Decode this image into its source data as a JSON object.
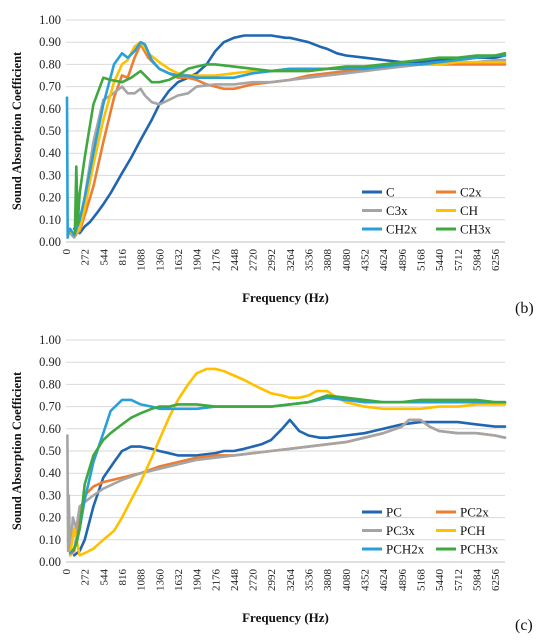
{
  "chart_data": [
    {
      "type": "line",
      "panel_label": "(b)",
      "xlabel": "Frequency (Hz)",
      "ylabel": "Sound Absorption Coefficient",
      "xlim": [
        0,
        6400
      ],
      "ylim": [
        0,
        1.0
      ],
      "x_ticks": [
        "0",
        "272",
        "544",
        "816",
        "1088",
        "1360",
        "1632",
        "1904",
        "2176",
        "2448",
        "2720",
        "2992",
        "3264",
        "3536",
        "3808",
        "4080",
        "4352",
        "4624",
        "4896",
        "5168",
        "5440",
        "5712",
        "5984",
        "6256"
      ],
      "y_ticks": [
        "0.00",
        "0.10",
        "0.20",
        "0.30",
        "0.40",
        "0.50",
        "0.60",
        "0.70",
        "0.80",
        "0.90",
        "1.00"
      ],
      "grid": "horizontal",
      "legend_position": "bottom-right",
      "series": [
        {
          "name": "C",
          "color": "#2166b0",
          "x": [
            120,
            200,
            272,
            350,
            450,
            544,
            650,
            816,
            950,
            1088,
            1250,
            1360,
            1500,
            1632,
            1780,
            1904,
            2050,
            2176,
            2300,
            2448,
            2600,
            2720,
            2850,
            2992,
            3200,
            3264,
            3400,
            3536,
            3700,
            3808,
            3950,
            4080,
            4352,
            4624,
            4896,
            5168,
            5440,
            5712,
            5984,
            6256,
            6400
          ],
          "y": [
            0.06,
            0.04,
            0.07,
            0.09,
            0.13,
            0.17,
            0.22,
            0.31,
            0.38,
            0.46,
            0.55,
            0.62,
            0.68,
            0.72,
            0.74,
            0.76,
            0.8,
            0.86,
            0.9,
            0.92,
            0.93,
            0.93,
            0.93,
            0.93,
            0.92,
            0.92,
            0.91,
            0.9,
            0.88,
            0.87,
            0.85,
            0.84,
            0.83,
            0.82,
            0.81,
            0.81,
            0.82,
            0.82,
            0.83,
            0.83,
            0.84
          ]
        },
        {
          "name": "C2x",
          "color": "#ed7d31",
          "x": [
            60,
            120,
            200,
            272,
            400,
            544,
            700,
            816,
            900,
            1000,
            1088,
            1200,
            1360,
            1500,
            1632,
            1780,
            1904,
            2050,
            2176,
            2300,
            2448,
            2720,
            2992,
            3264,
            3536,
            3808,
            4080,
            4352,
            4624,
            4896,
            5168,
            5440,
            5712,
            5984,
            6256,
            6400
          ],
          "y": [
            0.05,
            0.03,
            0.05,
            0.12,
            0.25,
            0.45,
            0.65,
            0.75,
            0.74,
            0.83,
            0.89,
            0.83,
            0.78,
            0.76,
            0.74,
            0.74,
            0.73,
            0.71,
            0.7,
            0.69,
            0.69,
            0.71,
            0.72,
            0.73,
            0.75,
            0.76,
            0.77,
            0.78,
            0.79,
            0.79,
            0.8,
            0.8,
            0.8,
            0.8,
            0.8,
            0.8
          ]
        },
        {
          "name": "C3x",
          "color": "#a5a5a5",
          "x": [
            60,
            120,
            200,
            272,
            400,
            544,
            650,
            816,
            900,
            1000,
            1088,
            1150,
            1250,
            1360,
            1500,
            1632,
            1780,
            1904,
            2176,
            2448,
            2720,
            2992,
            3264,
            3536,
            3808,
            4080,
            4352,
            4624,
            4896,
            5168,
            5440,
            5712,
            5984,
            6256,
            6400
          ],
          "y": [
            0.04,
            0.02,
            0.06,
            0.2,
            0.45,
            0.64,
            0.66,
            0.7,
            0.67,
            0.67,
            0.69,
            0.66,
            0.63,
            0.62,
            0.64,
            0.66,
            0.67,
            0.7,
            0.71,
            0.71,
            0.72,
            0.72,
            0.73,
            0.74,
            0.75,
            0.76,
            0.77,
            0.78,
            0.79,
            0.8,
            0.81,
            0.81,
            0.81,
            0.82,
            0.82
          ]
        },
        {
          "name": "CH",
          "color": "#ffc000",
          "x": [
            60,
            120,
            200,
            272,
            400,
            544,
            700,
            816,
            900,
            1000,
            1088,
            1200,
            1360,
            1500,
            1632,
            1780,
            1904,
            2176,
            2448,
            2720,
            2992,
            3264,
            3536,
            3808,
            4080,
            4352,
            4624,
            4896,
            5168,
            5440,
            5712,
            5984,
            6256,
            6400
          ],
          "y": [
            0.05,
            0.03,
            0.06,
            0.15,
            0.35,
            0.55,
            0.72,
            0.8,
            0.82,
            0.88,
            0.9,
            0.85,
            0.81,
            0.78,
            0.76,
            0.75,
            0.75,
            0.75,
            0.76,
            0.77,
            0.77,
            0.78,
            0.78,
            0.78,
            0.79,
            0.79,
            0.8,
            0.8,
            0.8,
            0.8,
            0.81,
            0.81,
            0.81,
            0.81
          ]
        },
        {
          "name": "CH2x",
          "color": "#2a9fd8",
          "x": [
            15,
            25,
            35,
            60,
            120,
            200,
            272,
            400,
            544,
            700,
            816,
            900,
            1000,
            1088,
            1150,
            1250,
            1360,
            1500,
            1632,
            1780,
            1904,
            2176,
            2448,
            2720,
            2992,
            3264,
            3536,
            3808,
            4080,
            4352,
            4624,
            4896,
            5168,
            5440,
            5712,
            5984,
            6256,
            6400
          ],
          "y": [
            0.65,
            0.02,
            0.04,
            0.06,
            0.03,
            0.1,
            0.2,
            0.4,
            0.62,
            0.8,
            0.85,
            0.83,
            0.86,
            0.9,
            0.89,
            0.82,
            0.78,
            0.76,
            0.75,
            0.75,
            0.74,
            0.74,
            0.74,
            0.76,
            0.77,
            0.78,
            0.78,
            0.78,
            0.78,
            0.78,
            0.79,
            0.8,
            0.8,
            0.81,
            0.82,
            0.83,
            0.84,
            0.84
          ]
        },
        {
          "name": "CH3x",
          "color": "#3fa83f",
          "x": [
            130,
            150,
            170,
            200,
            272,
            400,
            544,
            650,
            816,
            950,
            1088,
            1250,
            1360,
            1500,
            1632,
            1780,
            1904,
            2050,
            2176,
            2448,
            2720,
            2992,
            3264,
            3536,
            3808,
            4080,
            4352,
            4624,
            4896,
            5168,
            5440,
            5712,
            5984,
            6256,
            6400
          ],
          "y": [
            0.04,
            0.34,
            0.08,
            0.22,
            0.38,
            0.62,
            0.74,
            0.73,
            0.72,
            0.74,
            0.77,
            0.72,
            0.72,
            0.73,
            0.75,
            0.78,
            0.79,
            0.8,
            0.8,
            0.79,
            0.78,
            0.77,
            0.77,
            0.77,
            0.78,
            0.79,
            0.79,
            0.8,
            0.81,
            0.82,
            0.83,
            0.83,
            0.84,
            0.84,
            0.85
          ]
        }
      ]
    },
    {
      "type": "line",
      "panel_label": "(c)",
      "xlabel": "Frequency (Hz)",
      "ylabel": "Sound Absorption Coefficient",
      "xlim": [
        0,
        6400
      ],
      "ylim": [
        0,
        1.0
      ],
      "x_ticks": [
        "0",
        "272",
        "544",
        "816",
        "1088",
        "1360",
        "1632",
        "1904",
        "2176",
        "2448",
        "2720",
        "2992",
        "3264",
        "3536",
        "3808",
        "4080",
        "4352",
        "4624",
        "4896",
        "5168",
        "5440",
        "5712",
        "5984",
        "6256"
      ],
      "y_ticks": [
        "0.00",
        "0.10",
        "0.20",
        "0.30",
        "0.40",
        "0.50",
        "0.60",
        "0.70",
        "0.80",
        "0.90",
        "1.00"
      ],
      "grid": "horizontal",
      "legend_position": "bottom-right",
      "series": [
        {
          "name": "PC",
          "color": "#2166b0",
          "x": [
            120,
            200,
            272,
            400,
            544,
            700,
            816,
            950,
            1088,
            1250,
            1360,
            1500,
            1632,
            1780,
            1904,
            2176,
            2300,
            2448,
            2600,
            2720,
            2850,
            2992,
            3150,
            3264,
            3400,
            3536,
            3700,
            3808,
            4080,
            4352,
            4624,
            4896,
            5168,
            5440,
            5712,
            5984,
            6256,
            6400
          ],
          "y": [
            0.03,
            0.05,
            0.1,
            0.25,
            0.38,
            0.45,
            0.5,
            0.52,
            0.52,
            0.51,
            0.5,
            0.49,
            0.48,
            0.48,
            0.48,
            0.49,
            0.5,
            0.5,
            0.51,
            0.52,
            0.53,
            0.55,
            0.6,
            0.64,
            0.59,
            0.57,
            0.56,
            0.56,
            0.57,
            0.58,
            0.6,
            0.62,
            0.63,
            0.63,
            0.63,
            0.62,
            0.61,
            0.61
          ]
        },
        {
          "name": "PC2x",
          "color": "#ed7d31",
          "x": [
            60,
            120,
            200,
            272,
            400,
            544,
            816,
            1088,
            1360,
            1632,
            1904,
            2176,
            2448,
            2720,
            2992,
            3264,
            3536,
            3808,
            4080,
            4352,
            4624,
            4896,
            5000,
            5168,
            5300,
            5440,
            5712,
            5984,
            6256,
            6400
          ],
          "y": [
            0.03,
            0.05,
            0.2,
            0.3,
            0.34,
            0.36,
            0.38,
            0.4,
            0.43,
            0.45,
            0.47,
            0.48,
            0.48,
            0.49,
            0.5,
            0.51,
            0.52,
            0.53,
            0.54,
            0.56,
            0.58,
            0.61,
            0.64,
            0.64,
            0.61,
            0.59,
            0.58,
            0.58,
            0.57,
            0.56
          ]
        },
        {
          "name": "PC3x",
          "color": "#a5a5a5",
          "x": [
            20,
            30,
            40,
            60,
            100,
            150,
            200,
            272,
            400,
            544,
            816,
            1088,
            1360,
            1632,
            1904,
            2176,
            2448,
            2720,
            2992,
            3264,
            3536,
            3808,
            4080,
            4352,
            4624,
            4896,
            5000,
            5168,
            5300,
            5440,
            5712,
            5984,
            6256,
            6400
          ],
          "y": [
            0.57,
            0.05,
            0.3,
            0.05,
            0.2,
            0.15,
            0.25,
            0.27,
            0.3,
            0.33,
            0.37,
            0.4,
            0.42,
            0.44,
            0.46,
            0.47,
            0.48,
            0.49,
            0.5,
            0.51,
            0.52,
            0.53,
            0.54,
            0.56,
            0.58,
            0.61,
            0.64,
            0.64,
            0.61,
            0.59,
            0.58,
            0.58,
            0.57,
            0.56
          ]
        },
        {
          "name": "PCH",
          "color": "#ffc000",
          "x": [
            60,
            120,
            200,
            272,
            400,
            544,
            700,
            816,
            950,
            1088,
            1250,
            1360,
            1500,
            1632,
            1780,
            1904,
            2050,
            2176,
            2300,
            2448,
            2600,
            2720,
            2850,
            2992,
            3150,
            3264,
            3400,
            3536,
            3650,
            3808,
            3950,
            4080,
            4352,
            4624,
            4896,
            5168,
            5440,
            5712,
            5984,
            6256,
            6400
          ],
          "y": [
            0.03,
            0.15,
            0.03,
            0.04,
            0.06,
            0.1,
            0.14,
            0.2,
            0.28,
            0.36,
            0.47,
            0.55,
            0.65,
            0.73,
            0.8,
            0.85,
            0.87,
            0.87,
            0.86,
            0.84,
            0.82,
            0.8,
            0.78,
            0.76,
            0.75,
            0.74,
            0.74,
            0.75,
            0.77,
            0.77,
            0.74,
            0.72,
            0.7,
            0.69,
            0.69,
            0.69,
            0.7,
            0.7,
            0.71,
            0.71,
            0.71
          ]
        },
        {
          "name": "PCH2x",
          "color": "#2a9fd8",
          "x": [
            60,
            120,
            200,
            272,
            400,
            544,
            650,
            816,
            950,
            1088,
            1250,
            1360,
            1500,
            1632,
            1780,
            1904,
            2176,
            2448,
            2720,
            2992,
            3264,
            3536,
            3808,
            4080,
            4352,
            4624,
            4896,
            5168,
            5440,
            5712,
            5984,
            6256,
            6400
          ],
          "y": [
            0.04,
            0.06,
            0.15,
            0.28,
            0.45,
            0.58,
            0.68,
            0.73,
            0.73,
            0.71,
            0.7,
            0.69,
            0.69,
            0.69,
            0.69,
            0.69,
            0.7,
            0.7,
            0.7,
            0.7,
            0.71,
            0.72,
            0.74,
            0.73,
            0.72,
            0.72,
            0.72,
            0.72,
            0.72,
            0.72,
            0.72,
            0.72,
            0.72
          ]
        },
        {
          "name": "PCH3x",
          "color": "#3fa83f",
          "x": [
            100,
            150,
            200,
            272,
            400,
            544,
            650,
            816,
            950,
            1088,
            1250,
            1360,
            1500,
            1632,
            1780,
            1904,
            2176,
            2448,
            2720,
            2992,
            3264,
            3536,
            3808,
            4080,
            4352,
            4624,
            4896,
            5168,
            5440,
            5712,
            5984,
            6256,
            6400
          ],
          "y": [
            0.05,
            0.08,
            0.15,
            0.35,
            0.48,
            0.55,
            0.58,
            0.62,
            0.65,
            0.67,
            0.69,
            0.7,
            0.7,
            0.71,
            0.71,
            0.71,
            0.7,
            0.7,
            0.7,
            0.7,
            0.71,
            0.72,
            0.75,
            0.74,
            0.73,
            0.72,
            0.72,
            0.73,
            0.73,
            0.73,
            0.73,
            0.72,
            0.72
          ]
        }
      ]
    }
  ]
}
